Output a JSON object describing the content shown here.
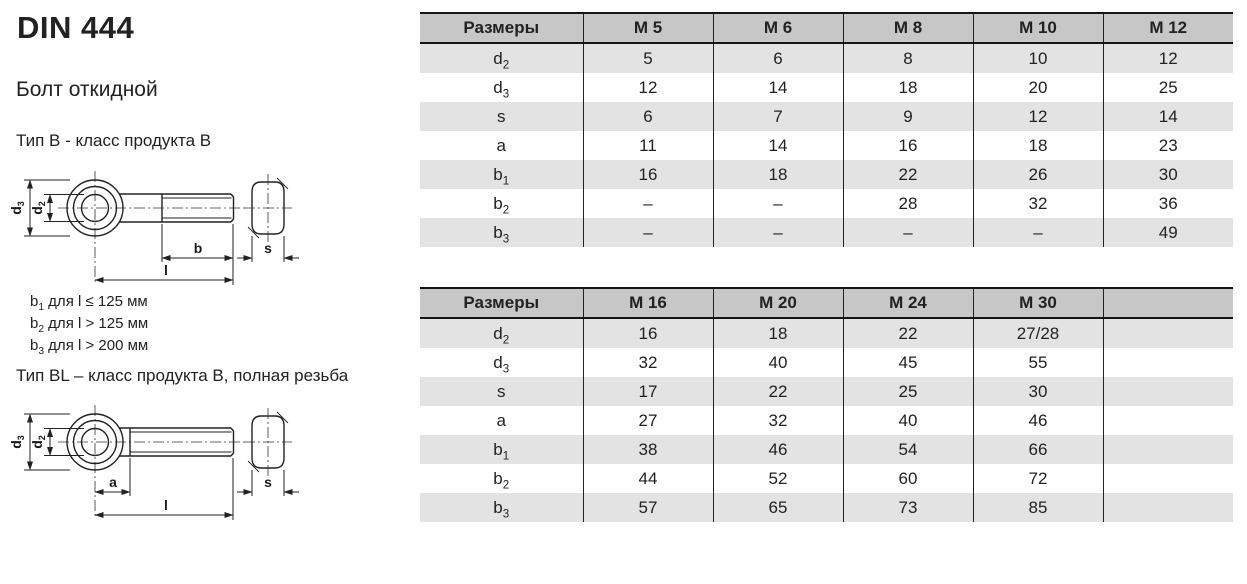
{
  "page": {
    "title": "DIN 444",
    "subtitle": "Болт откидной",
    "type_b_label": "Тип B  - класс продукта B",
    "type_bl_label": "Тип BL – класс продукта B, полная резьба",
    "notes": [
      {
        "base": "b",
        "sub": "1",
        "text": " для l ≤ 125 мм"
      },
      {
        "base": "b",
        "sub": "2",
        "text": " для l > 125 мм"
      },
      {
        "base": "b",
        "sub": "3",
        "text": " для l > 200 мм"
      }
    ]
  },
  "drawing1": {
    "labels": {
      "d3": {
        "base": "d",
        "sub": "3"
      },
      "d2": {
        "base": "d",
        "sub": "2"
      },
      "b": {
        "base": "b",
        "sub": ""
      },
      "l": {
        "base": "l",
        "sub": ""
      },
      "s": {
        "base": "s",
        "sub": ""
      }
    }
  },
  "drawing2": {
    "labels": {
      "d3": {
        "base": "d",
        "sub": "3"
      },
      "d2": {
        "base": "d",
        "sub": "2"
      },
      "a": {
        "base": "a",
        "sub": ""
      },
      "l": {
        "base": "l",
        "sub": ""
      },
      "s": {
        "base": "s",
        "sub": ""
      }
    }
  },
  "tables": [
    {
      "header": [
        "Размеры",
        "M 5",
        "M 6",
        "M 8",
        "M 10",
        "M 12"
      ],
      "rows": [
        {
          "label": {
            "base": "d",
            "sub": "2"
          },
          "values": [
            "5",
            "6",
            "8",
            "10",
            "12"
          ]
        },
        {
          "label": {
            "base": "d",
            "sub": "3"
          },
          "values": [
            "12",
            "14",
            "18",
            "20",
            "25"
          ]
        },
        {
          "label": {
            "base": "s",
            "sub": ""
          },
          "values": [
            "6",
            "7",
            "9",
            "12",
            "14"
          ]
        },
        {
          "label": {
            "base": "a",
            "sub": ""
          },
          "values": [
            "11",
            "14",
            "16",
            "18",
            "23"
          ]
        },
        {
          "label": {
            "base": "b",
            "sub": "1"
          },
          "values": [
            "16",
            "18",
            "22",
            "26",
            "30"
          ]
        },
        {
          "label": {
            "base": "b",
            "sub": "2"
          },
          "values": [
            "–",
            "–",
            "28",
            "32",
            "36"
          ]
        },
        {
          "label": {
            "base": "b",
            "sub": "3"
          },
          "values": [
            "–",
            "–",
            "–",
            "–",
            "49"
          ]
        }
      ]
    },
    {
      "header": [
        "Размеры",
        "M 16",
        "M 20",
        "M 24",
        "M 30",
        ""
      ],
      "rows": [
        {
          "label": {
            "base": "d",
            "sub": "2"
          },
          "values": [
            "16",
            "18",
            "22",
            "27/28",
            ""
          ]
        },
        {
          "label": {
            "base": "d",
            "sub": "3"
          },
          "values": [
            "32",
            "40",
            "45",
            "55",
            ""
          ]
        },
        {
          "label": {
            "base": "s",
            "sub": ""
          },
          "values": [
            "17",
            "22",
            "25",
            "30",
            ""
          ]
        },
        {
          "label": {
            "base": "a",
            "sub": ""
          },
          "values": [
            "27",
            "32",
            "40",
            "46",
            ""
          ]
        },
        {
          "label": {
            "base": "b",
            "sub": "1"
          },
          "values": [
            "38",
            "46",
            "54",
            "66",
            ""
          ]
        },
        {
          "label": {
            "base": "b",
            "sub": "2"
          },
          "values": [
            "44",
            "52",
            "60",
            "72",
            ""
          ]
        },
        {
          "label": {
            "base": "b",
            "sub": "3"
          },
          "values": [
            "57",
            "65",
            "73",
            "85",
            ""
          ]
        }
      ]
    }
  ],
  "colors": {
    "header_bg": "#c7c7c7",
    "stripe_bg": "#e3e3e3",
    "border": "#1c1c1c",
    "text": "#222222"
  }
}
